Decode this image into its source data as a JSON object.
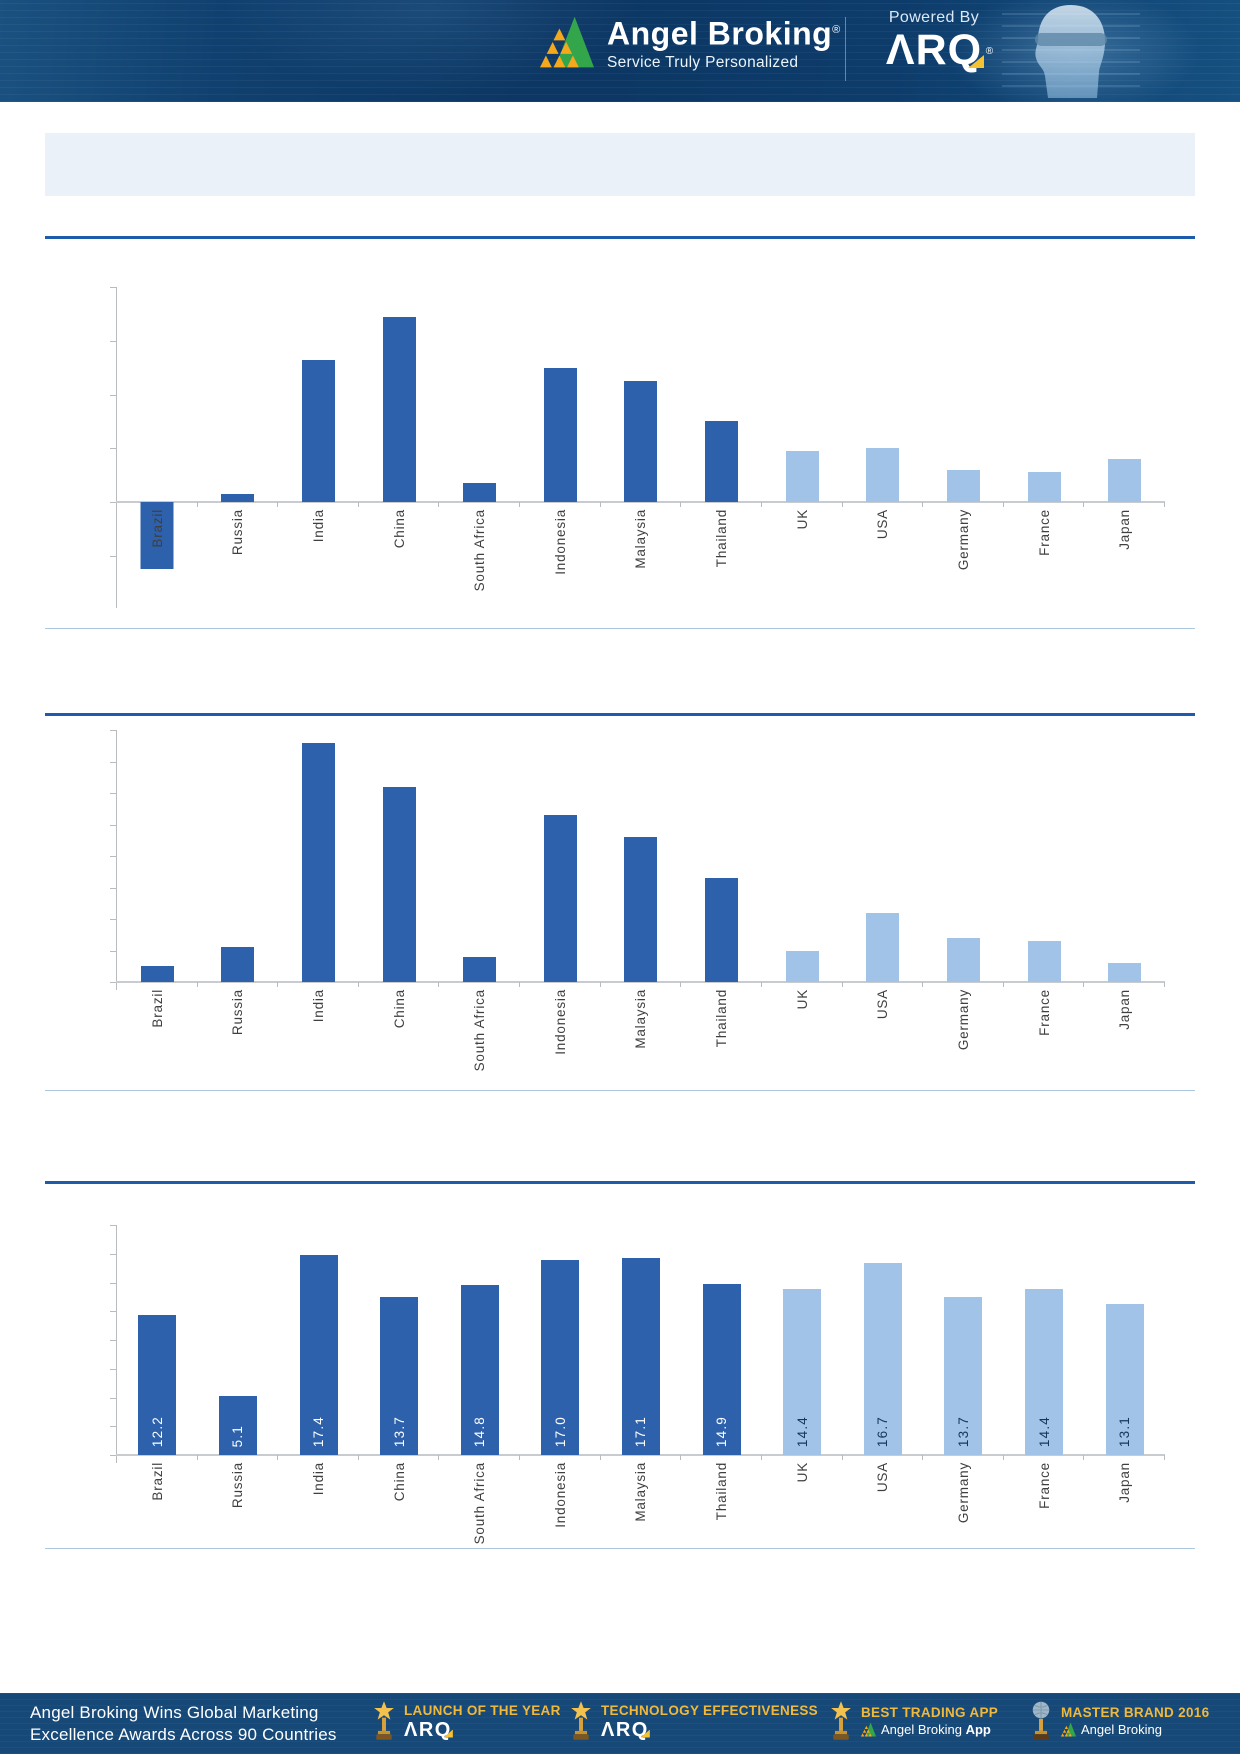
{
  "header": {
    "brand": "Angel Broking",
    "brand_mark": "®",
    "tagline": "Service Truly Personalized",
    "powered_by": "Powered By",
    "arq": "ARQ",
    "arq_mark": "®"
  },
  "title_box": {
    "text": ""
  },
  "chart_data": [
    {
      "type": "bar",
      "title": "",
      "categories": [
        "Brazil",
        "Russia",
        "India",
        "China",
        "South Africa",
        "Indonesia",
        "Malaysia",
        "Thailand",
        "UK",
        "USA",
        "Germany",
        "France",
        "Japan"
      ],
      "values": [
        -2.5,
        0.3,
        5.3,
        6.9,
        0.7,
        5.0,
        4.5,
        3.0,
        1.9,
        2.0,
        1.2,
        1.1,
        1.6
      ],
      "ylim": [
        -4,
        8
      ],
      "ytick_step": 2,
      "grid": false,
      "axis_tick_labels_visible": false,
      "data_labels": false,
      "legend": null,
      "bar_colors": {
        "dark": "#2E61AC",
        "light": "#A2C3E8",
        "dark_count": 8
      }
    },
    {
      "type": "bar",
      "title": "",
      "categories": [
        "Brazil",
        "Russia",
        "India",
        "China",
        "South Africa",
        "Indonesia",
        "Malaysia",
        "Thailand",
        "UK",
        "USA",
        "Germany",
        "France",
        "Japan"
      ],
      "values": [
        0.5,
        1.1,
        7.6,
        6.2,
        0.8,
        5.3,
        4.6,
        3.3,
        1.0,
        2.2,
        1.4,
        1.3,
        0.6
      ],
      "ylim": [
        0,
        8
      ],
      "ytick_step": 1,
      "grid": false,
      "axis_tick_labels_visible": false,
      "data_labels": false,
      "legend": null,
      "bar_colors": {
        "dark": "#2E61AC",
        "light": "#A2C3E8",
        "dark_count": 8
      }
    },
    {
      "type": "bar",
      "title": "",
      "categories": [
        "Brazil",
        "Russia",
        "India",
        "China",
        "South Africa",
        "Indonesia",
        "Malaysia",
        "Thailand",
        "UK",
        "USA",
        "Germany",
        "France",
        "Japan"
      ],
      "values": [
        12.2,
        5.1,
        17.4,
        13.7,
        14.8,
        17.0,
        17.1,
        14.9,
        14.4,
        16.7,
        13.7,
        14.4,
        13.1
      ],
      "data_label_values": [
        "12.2",
        "5.1",
        "17.4",
        "13.7",
        "14.8",
        "17.0",
        "17.1",
        "14.9",
        "14.4",
        "16.7",
        "13.7",
        "14.4",
        "13.1"
      ],
      "ylim": [
        0,
        20
      ],
      "ytick_step": 2.5,
      "grid": false,
      "axis_tick_labels_visible": false,
      "data_labels": true,
      "legend": null,
      "bar_colors": {
        "dark": "#2E61AC",
        "light": "#A2C3E8",
        "dark_count": 8
      }
    }
  ],
  "footer": {
    "headline_line1": "Angel Broking Wins Global Marketing",
    "headline_line2": "Excellence Awards Across 90 Countries",
    "awards": [
      {
        "title": "LAUNCH OF THE YEAR",
        "sub": "ARQ",
        "icon": "trophy-icon"
      },
      {
        "title": "TECHNOLOGY EFFECTIVENESS",
        "sub": "ARQ",
        "icon": "trophy-icon"
      },
      {
        "title": "BEST TRADING APP",
        "sub_regular": "Angel Broking",
        "sub_bold": "App",
        "icon": "trophy-icon"
      },
      {
        "title": "MASTER BRAND 2016",
        "sub": "Angel Broking",
        "icon": "globe-trophy-icon"
      }
    ]
  }
}
